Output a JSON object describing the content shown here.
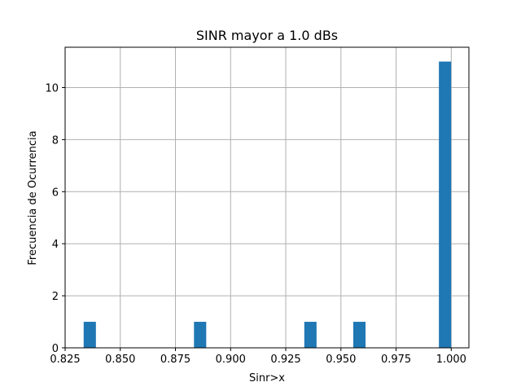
{
  "chart_data": {
    "type": "bar",
    "title": "SINR mayor a 1.0 dBs",
    "xlabel": "Sinr>x",
    "ylabel": "Frecuencia de Ocurrencia",
    "xlim": [
      0.825,
      1.008
    ],
    "ylim": [
      0,
      11.55
    ],
    "bin_width": 0.00555,
    "bars": [
      {
        "x_start": 0.8334,
        "height": 1
      },
      {
        "x_start": 0.8834,
        "height": 1
      },
      {
        "x_start": 0.9334,
        "height": 1
      },
      {
        "x_start": 0.9556,
        "height": 1
      },
      {
        "x_start": 0.9944,
        "height": 11
      }
    ],
    "x_ticks": [
      "0.825",
      "0.850",
      "0.875",
      "0.900",
      "0.925",
      "0.950",
      "0.975",
      "1.000"
    ],
    "x_tick_values": [
      0.825,
      0.85,
      0.875,
      0.9,
      0.925,
      0.95,
      0.975,
      1.0
    ],
    "y_ticks": [
      "0",
      "2",
      "4",
      "6",
      "8",
      "10"
    ],
    "y_tick_values": [
      0,
      2,
      4,
      6,
      8,
      10
    ],
    "grid": true,
    "bar_color": "#1f77b4"
  }
}
